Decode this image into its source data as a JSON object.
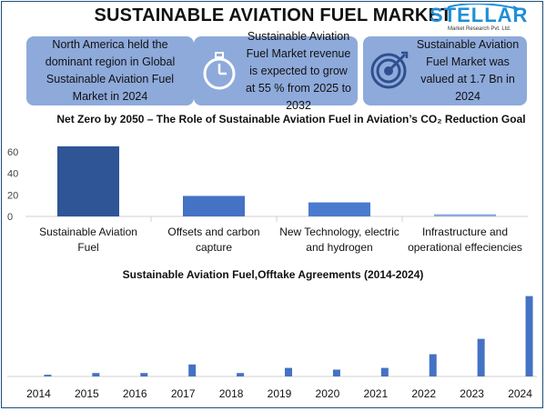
{
  "header": {
    "title": "SUSTAINABLE AVIATION FUEL MARKET",
    "logo_text": "STELLAR",
    "logo_subtext": "Market Research Pvt. Ltd."
  },
  "cards": [
    {
      "text": "North America held the dominant region in Global Sustainable Aviation Fuel Market in 2024"
    },
    {
      "text": "Sustainable Aviation Fuel Market revenue is expected to grow at 55 % from 2025 to 2032",
      "icon": "stopwatch-icon"
    },
    {
      "text": "Sustainable Aviation Fuel Market was valued at 1.7 Bn in 2024",
      "icon": "target-icon"
    }
  ],
  "colors": {
    "card": "#8eaadb",
    "bar1": "#2f5597",
    "bar2": "#4472c4",
    "bar3": "#4a7bcf",
    "bar4": "#8eaadb",
    "bar_single": "#4472c4"
  },
  "chart_data": [
    {
      "type": "bar",
      "title": "Net Zero by 2050 – The Role of Sustainable Aviation Fuel in Aviation’s CO₂ Reduction Goal",
      "categories": [
        "Sustainable Aviation Fuel",
        "Offsets and carbon capture",
        "New Technology, electric and hydrogen",
        "Infrastructure and operational effeciencies"
      ],
      "values": [
        65,
        19,
        13,
        2
      ],
      "ylim": [
        0,
        70
      ],
      "yticks": [
        0,
        20,
        40,
        60
      ],
      "grid": false
    },
    {
      "type": "bar",
      "title": "Sustainable Aviation Fuel,Offtake Agreements (2014-2024)",
      "categories": [
        "2014",
        "2015",
        "2016",
        "2017",
        "2018",
        "2019",
        "2020",
        "2021",
        "2022",
        "2023",
        "2024"
      ],
      "values": [
        1,
        2,
        2,
        7,
        2,
        5,
        4,
        5,
        13,
        22,
        47
      ],
      "ylim": [
        0,
        50
      ],
      "grid": false
    }
  ]
}
